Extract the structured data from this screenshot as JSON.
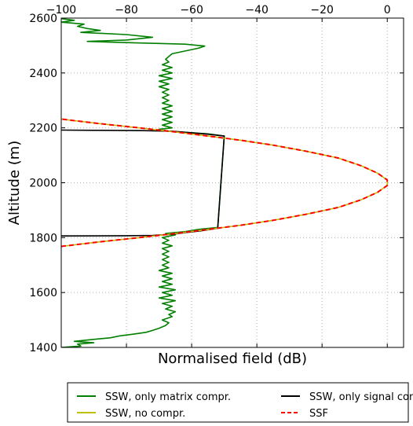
{
  "chart_data": {
    "type": "line",
    "xlabel": "Normalised field (dB)",
    "ylabel": "Altitude (m)",
    "xlim": [
      -100,
      5
    ],
    "ylim": [
      1400,
      2600
    ],
    "x_ticks": [
      -100,
      -80,
      -60,
      -40,
      -20,
      0
    ],
    "x_tick_labels": [
      "−100",
      "−80",
      "−60",
      "−40",
      "−20",
      "0"
    ],
    "y_ticks": [
      1400,
      1600,
      1800,
      2000,
      2200,
      2400,
      2600
    ],
    "y_tick_labels": [
      "1400",
      "1600",
      "1800",
      "2000",
      "2200",
      "2400",
      "2600"
    ],
    "x_ticks_position": "top",
    "grid": true,
    "legend": {
      "position": "bottom",
      "columns": 2
    },
    "series": [
      {
        "name": "SSW, only matrix compr.",
        "color": "#008000",
        "style": "solid",
        "points": [
          [
            -100,
            1400
          ],
          [
            -94,
            1405
          ],
          [
            -95,
            1412
          ],
          [
            -90,
            1417
          ],
          [
            -96,
            1422
          ],
          [
            -91,
            1428
          ],
          [
            -85,
            1435
          ],
          [
            -82,
            1442
          ],
          [
            -78,
            1448
          ],
          [
            -74,
            1455
          ],
          [
            -72,
            1462
          ],
          [
            -70,
            1470
          ],
          [
            -68,
            1480
          ],
          [
            -67,
            1490
          ],
          [
            -69,
            1500
          ],
          [
            -66,
            1512
          ],
          [
            -67,
            1520
          ],
          [
            -65,
            1530
          ],
          [
            -68,
            1540
          ],
          [
            -66,
            1550
          ],
          [
            -69,
            1560
          ],
          [
            -65,
            1570
          ],
          [
            -70,
            1580
          ],
          [
            -66,
            1590
          ],
          [
            -69,
            1600
          ],
          [
            -65,
            1610
          ],
          [
            -70,
            1620
          ],
          [
            -66,
            1630
          ],
          [
            -69,
            1640
          ],
          [
            -66,
            1650
          ],
          [
            -69,
            1660
          ],
          [
            -66,
            1670
          ],
          [
            -70,
            1680
          ],
          [
            -67,
            1690
          ],
          [
            -69,
            1700
          ],
          [
            -67,
            1710
          ],
          [
            -69,
            1720
          ],
          [
            -67,
            1730
          ],
          [
            -69,
            1740
          ],
          [
            -67,
            1750
          ],
          [
            -69,
            1760
          ],
          [
            -66,
            1770
          ],
          [
            -69,
            1780
          ],
          [
            -67,
            1790
          ],
          [
            -69,
            1800
          ],
          [
            -65,
            1810
          ],
          [
            -68,
            1815
          ],
          [
            -62,
            1822
          ],
          [
            -58,
            1830
          ],
          [
            -52,
            1837
          ],
          [
            -50,
            2170
          ],
          [
            -55,
            2178
          ],
          [
            -62,
            2184
          ],
          [
            -67,
            2188
          ],
          [
            -70,
            2195
          ],
          [
            -66,
            2200
          ],
          [
            -69,
            2210
          ],
          [
            -66,
            2220
          ],
          [
            -69,
            2230
          ],
          [
            -66,
            2240
          ],
          [
            -69,
            2250
          ],
          [
            -66,
            2260
          ],
          [
            -69,
            2270
          ],
          [
            -66,
            2280
          ],
          [
            -69,
            2290
          ],
          [
            -67,
            2300
          ],
          [
            -69,
            2310
          ],
          [
            -67,
            2320
          ],
          [
            -69,
            2330
          ],
          [
            -67,
            2340
          ],
          [
            -70,
            2350
          ],
          [
            -67,
            2360
          ],
          [
            -70,
            2370
          ],
          [
            -66,
            2380
          ],
          [
            -70,
            2390
          ],
          [
            -66,
            2400
          ],
          [
            -69,
            2410
          ],
          [
            -66,
            2420
          ],
          [
            -69,
            2430
          ],
          [
            -67,
            2440
          ],
          [
            -68,
            2450
          ],
          [
            -67,
            2460
          ],
          [
            -66,
            2470
          ],
          [
            -62,
            2480
          ],
          [
            -58,
            2490
          ],
          [
            -56,
            2498
          ],
          [
            -62,
            2505
          ],
          [
            -78,
            2510
          ],
          [
            -92,
            2515
          ],
          [
            -80,
            2520
          ],
          [
            -72,
            2530
          ],
          [
            -80,
            2540
          ],
          [
            -94,
            2548
          ],
          [
            -88,
            2555
          ],
          [
            -92,
            2562
          ],
          [
            -95,
            2570
          ],
          [
            -93,
            2578
          ],
          [
            -100,
            2585
          ],
          [
            -96,
            2592
          ],
          [
            -100,
            2598
          ]
        ]
      },
      {
        "name": "SSW, only signal compr.",
        "color": "#000000",
        "style": "solid",
        "points": [
          [
            -100,
            1806
          ],
          [
            -80,
            1807
          ],
          [
            -72,
            1808
          ],
          [
            -66,
            1812
          ],
          [
            -62,
            1818
          ],
          [
            -57,
            1825
          ],
          [
            -52,
            1834
          ],
          [
            -50,
            2170
          ],
          [
            -56,
            2178
          ],
          [
            -62,
            2184
          ],
          [
            -66,
            2188
          ],
          [
            -75,
            2190
          ],
          [
            -90,
            2191
          ],
          [
            -100,
            2192
          ]
        ]
      },
      {
        "name": "SSW, no compr.",
        "color": "#bfbf00",
        "style": "solid",
        "points": [
          [
            -100,
            1768
          ],
          [
            -88,
            1785
          ],
          [
            -76,
            1800
          ],
          [
            -65,
            1815
          ],
          [
            -55,
            1830
          ],
          [
            -45,
            1845
          ],
          [
            -35,
            1863
          ],
          [
            -25,
            1885
          ],
          [
            -15,
            1910
          ],
          [
            -8,
            1938
          ],
          [
            -3,
            1965
          ],
          [
            0,
            1990
          ],
          [
            0,
            2010
          ],
          [
            -3,
            2035
          ],
          [
            -8,
            2062
          ],
          [
            -15,
            2090
          ],
          [
            -25,
            2115
          ],
          [
            -35,
            2137
          ],
          [
            -45,
            2155
          ],
          [
            -55,
            2170
          ],
          [
            -65,
            2185
          ],
          [
            -76,
            2200
          ],
          [
            -88,
            2215
          ],
          [
            -100,
            2232
          ]
        ]
      },
      {
        "name": "SSF",
        "color": "#ff0000",
        "style": "dashed",
        "points": [
          [
            -100,
            1768
          ],
          [
            -88,
            1785
          ],
          [
            -76,
            1800
          ],
          [
            -65,
            1815
          ],
          [
            -55,
            1830
          ],
          [
            -45,
            1845
          ],
          [
            -35,
            1863
          ],
          [
            -25,
            1885
          ],
          [
            -15,
            1910
          ],
          [
            -8,
            1938
          ],
          [
            -3,
            1965
          ],
          [
            0,
            1990
          ],
          [
            0,
            2010
          ],
          [
            -3,
            2035
          ],
          [
            -8,
            2062
          ],
          [
            -15,
            2090
          ],
          [
            -25,
            2115
          ],
          [
            -35,
            2137
          ],
          [
            -45,
            2155
          ],
          [
            -55,
            2170
          ],
          [
            -65,
            2185
          ],
          [
            -76,
            2200
          ],
          [
            -88,
            2215
          ],
          [
            -100,
            2232
          ]
        ]
      }
    ]
  }
}
